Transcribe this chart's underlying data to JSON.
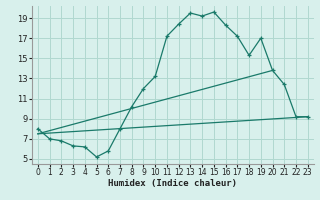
{
  "title": "",
  "xlabel": "Humidex (Indice chaleur)",
  "ylabel": "",
  "background_color": "#d8f0ec",
  "grid_color": "#b0d8d0",
  "line_color": "#1a7a6a",
  "xlim": [
    -0.5,
    23.5
  ],
  "ylim": [
    4.5,
    20.2
  ],
  "xticks": [
    0,
    1,
    2,
    3,
    4,
    5,
    6,
    7,
    8,
    9,
    10,
    11,
    12,
    13,
    14,
    15,
    16,
    17,
    18,
    19,
    20,
    21,
    22,
    23
  ],
  "yticks": [
    5,
    7,
    9,
    11,
    13,
    15,
    17,
    19
  ],
  "series1_x": [
    0,
    1,
    2,
    3,
    4,
    5,
    6,
    7,
    8,
    9,
    10,
    11,
    12,
    13,
    14,
    15,
    16,
    17,
    18,
    19,
    20,
    21,
    22,
    23
  ],
  "series1_y": [
    8.0,
    7.0,
    6.8,
    6.3,
    6.2,
    5.2,
    5.8,
    8.0,
    10.2,
    12.0,
    13.2,
    17.2,
    18.4,
    19.5,
    19.2,
    19.6,
    18.3,
    17.2,
    15.3,
    17.0,
    13.8,
    12.4,
    9.2,
    9.2
  ],
  "series2_x": [
    0,
    23
  ],
  "series2_y": [
    7.5,
    9.2
  ],
  "series3_x": [
    0,
    20
  ],
  "series3_y": [
    7.5,
    13.8
  ]
}
